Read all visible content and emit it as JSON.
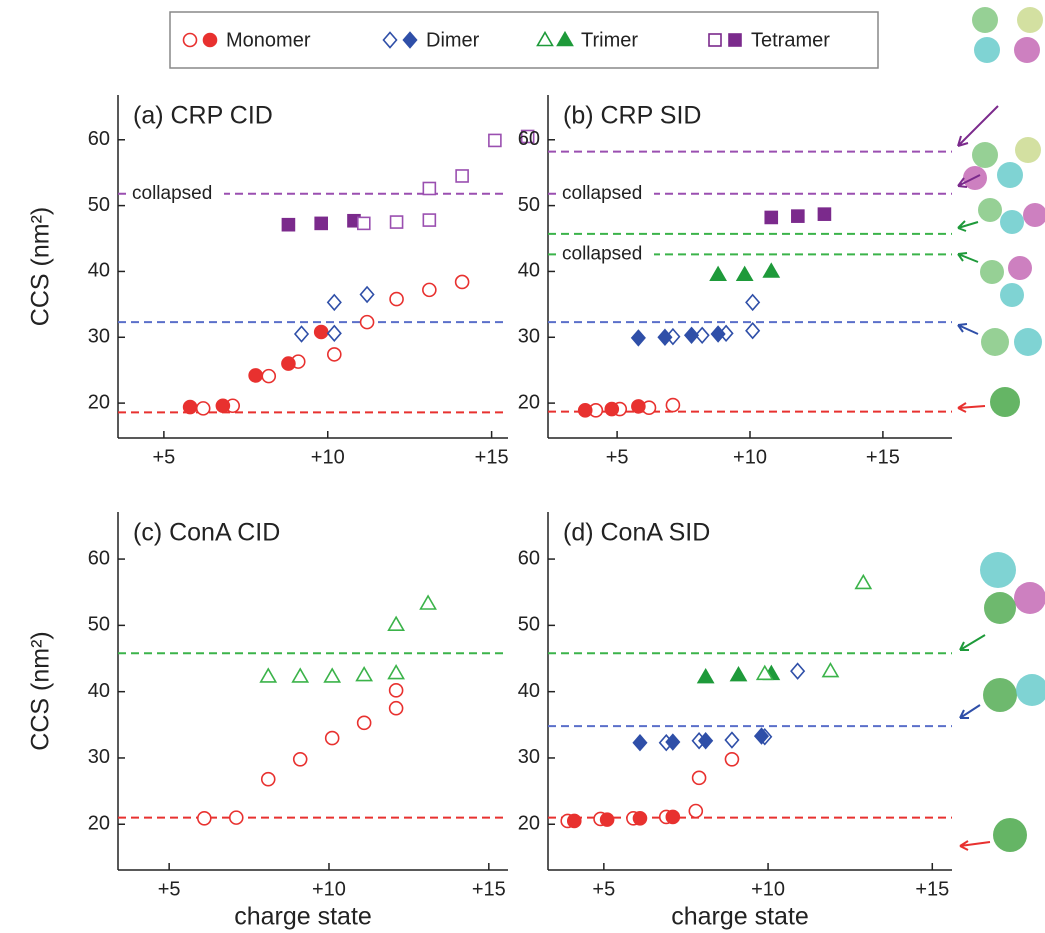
{
  "legend": [
    {
      "name": "Monomer",
      "color": "#e8312f",
      "marker": "circle"
    },
    {
      "name": "Dimer",
      "color": "#2f4fa8",
      "marker": "diamond"
    },
    {
      "name": "Trimer",
      "color": "#1e9a3a",
      "marker": "triangle"
    },
    {
      "name": "Tetramer",
      "color": "#7b2a8c",
      "marker": "square"
    }
  ],
  "chart_data": [
    {
      "type": "scatter",
      "title": "(a) CRP CID",
      "ylabel": "CCS (nm²)",
      "xlim": [
        3.6,
        15.5
      ],
      "ylim": [
        14.7,
        66.8
      ],
      "xticks": [
        {
          "value": 5,
          "label": "+5"
        },
        {
          "value": 10,
          "label": "+10"
        },
        {
          "value": 15,
          "label": "+15"
        }
      ],
      "yticks": [
        20,
        30,
        40,
        50,
        60
      ],
      "hlines": [
        {
          "value": 18.6,
          "color": "#e8312f"
        },
        {
          "value": 32.3,
          "color": "#5a6fc9"
        },
        {
          "value": 51.8,
          "color": "#9a4fb0",
          "label": "collapsed"
        }
      ],
      "series": [
        {
          "marker": "circle",
          "filled": false,
          "color": "#e8312f",
          "x": [
            6.2,
            7.1,
            8.2,
            9.1,
            10.2,
            11.2,
            12.1,
            13.1,
            14.1
          ],
          "values": [
            19.2,
            19.6,
            24.1,
            26.3,
            27.4,
            32.3,
            35.8,
            37.2,
            38.4
          ]
        },
        {
          "marker": "circle",
          "filled": true,
          "color": "#e8312f",
          "x": [
            5.8,
            6.8,
            7.8,
            8.8,
            9.8
          ],
          "values": [
            19.4,
            19.6,
            24.2,
            26.0,
            30.8
          ]
        },
        {
          "marker": "diamond",
          "filled": false,
          "color": "#2f4fa8",
          "x": [
            9.2,
            10.2,
            10.2,
            11.2
          ],
          "values": [
            30.5,
            30.6,
            35.3,
            36.5
          ]
        },
        {
          "marker": "square",
          "filled": true,
          "color": "#7b2a8c",
          "x": [
            8.8,
            9.8,
            10.8
          ],
          "values": [
            47.1,
            47.3,
            47.7
          ]
        },
        {
          "marker": "square",
          "filled": false,
          "color": "#9a4fb0",
          "x": [
            11.1,
            12.1,
            13.1,
            13.1,
            14.1,
            15.1,
            16.1
          ],
          "values": [
            47.3,
            47.5,
            47.8,
            52.6,
            54.5,
            59.9,
            60.5
          ]
        }
      ]
    },
    {
      "type": "scatter",
      "title": "(b) CRP SID",
      "xlim": [
        2.4,
        17.6
      ],
      "ylim": [
        14.7,
        66.8
      ],
      "xticks": [
        {
          "value": 5,
          "label": "+5"
        },
        {
          "value": 10,
          "label": "+10"
        },
        {
          "value": 15,
          "label": "+15"
        }
      ],
      "yticks": [
        20,
        30,
        40,
        50,
        60
      ],
      "hlines": [
        {
          "value": 18.7,
          "color": "#e8312f"
        },
        {
          "value": 32.3,
          "color": "#5a6fc9"
        },
        {
          "value": 42.6,
          "color": "#3bb34a",
          "label": "collapsed"
        },
        {
          "value": 45.7,
          "color": "#3bb34a"
        },
        {
          "value": 51.8,
          "color": "#9a4fb0",
          "label": "collapsed"
        },
        {
          "value": 58.2,
          "color": "#9a4fb0"
        }
      ],
      "series": [
        {
          "marker": "circle",
          "filled": false,
          "color": "#e8312f",
          "x": [
            4.2,
            5.1,
            6.2,
            7.1
          ],
          "values": [
            18.9,
            19.1,
            19.3,
            19.7
          ]
        },
        {
          "marker": "circle",
          "filled": true,
          "color": "#e8312f",
          "x": [
            3.8,
            4.8,
            5.8
          ],
          "values": [
            18.9,
            19.1,
            19.5
          ]
        },
        {
          "marker": "diamond",
          "filled": false,
          "color": "#2f4fa8",
          "x": [
            7.1,
            8.2,
            9.1,
            10.1,
            10.1
          ],
          "values": [
            30.1,
            30.3,
            30.6,
            31.0,
            35.3
          ]
        },
        {
          "marker": "diamond",
          "filled": true,
          "color": "#2f4fa8",
          "x": [
            5.8,
            6.8,
            7.8,
            8.8
          ],
          "values": [
            29.9,
            30.0,
            30.3,
            30.5
          ]
        },
        {
          "marker": "triangle",
          "filled": true,
          "color": "#1e9a3a",
          "x": [
            8.8,
            9.8,
            10.8
          ],
          "values": [
            39.5,
            39.5,
            40.0
          ]
        },
        {
          "marker": "square",
          "filled": true,
          "color": "#7b2a8c",
          "x": [
            10.8,
            11.8,
            12.8
          ],
          "values": [
            48.2,
            48.4,
            48.7
          ]
        }
      ]
    },
    {
      "type": "scatter",
      "title": "(c) ConA CID",
      "ylabel": "CCS (nm²)",
      "xlabel": "charge state",
      "xlim": [
        3.4,
        15.6
      ],
      "ylim": [
        13.1,
        67.1
      ],
      "xticks": [
        {
          "value": 5,
          "label": "+5"
        },
        {
          "value": 10,
          "label": "+10"
        },
        {
          "value": 15,
          "label": "+15"
        }
      ],
      "yticks": [
        20,
        30,
        40,
        50,
        60
      ],
      "hlines": [
        {
          "value": 21.0,
          "color": "#e8312f"
        },
        {
          "value": 45.8,
          "color": "#3bb34a"
        }
      ],
      "series": [
        {
          "marker": "circle",
          "filled": false,
          "color": "#e8312f",
          "x": [
            6.1,
            7.1,
            8.1,
            9.1,
            10.1,
            11.1,
            12.1,
            12.1
          ],
          "values": [
            20.9,
            21.0,
            26.8,
            29.8,
            33.0,
            35.3,
            37.5,
            40.2
          ]
        },
        {
          "marker": "triangle",
          "filled": false,
          "color": "#3bb34a",
          "x": [
            8.1,
            9.1,
            10.1,
            11.1,
            12.1,
            12.1,
            13.1
          ],
          "values": [
            42.3,
            42.3,
            42.3,
            42.5,
            42.8,
            50.1,
            53.3
          ]
        }
      ]
    },
    {
      "type": "scatter",
      "title": "(d) ConA SID",
      "xlabel": "charge state",
      "xlim": [
        3.3,
        15.6
      ],
      "ylim": [
        13.1,
        67.1
      ],
      "xticks": [
        {
          "value": 5,
          "label": "+5"
        },
        {
          "value": 10,
          "label": "+10"
        },
        {
          "value": 15,
          "label": "+15"
        }
      ],
      "yticks": [
        20,
        30,
        40,
        50,
        60
      ],
      "hlines": [
        {
          "value": 21.0,
          "color": "#e8312f"
        },
        {
          "value": 34.8,
          "color": "#5a6fc9"
        },
        {
          "value": 45.8,
          "color": "#3bb34a"
        }
      ],
      "series": [
        {
          "marker": "circle",
          "filled": false,
          "color": "#e8312f",
          "x": [
            3.9,
            4.9,
            5.9,
            6.9,
            7.8,
            7.9,
            8.9
          ],
          "values": [
            20.5,
            20.8,
            20.9,
            21.1,
            22.0,
            27.0,
            29.8
          ]
        },
        {
          "marker": "circle",
          "filled": true,
          "color": "#e8312f",
          "x": [
            4.1,
            5.1,
            6.1,
            7.1
          ],
          "values": [
            20.5,
            20.7,
            20.9,
            21.1
          ]
        },
        {
          "marker": "diamond",
          "filled": false,
          "color": "#2f4fa8",
          "x": [
            6.9,
            7.9,
            8.9,
            9.9,
            10.9
          ],
          "values": [
            32.3,
            32.6,
            32.7,
            33.2,
            43.1
          ]
        },
        {
          "marker": "diamond",
          "filled": true,
          "color": "#2f4fa8",
          "x": [
            6.1,
            7.1,
            8.1,
            9.8
          ],
          "values": [
            32.3,
            32.4,
            32.6,
            33.3
          ]
        },
        {
          "marker": "triangle",
          "filled": true,
          "color": "#1e9a3a",
          "x": [
            8.1,
            9.1,
            10.1
          ],
          "values": [
            42.2,
            42.5,
            42.7
          ]
        },
        {
          "marker": "triangle",
          "filled": false,
          "color": "#3bb34a",
          "x": [
            9.9,
            11.9,
            12.9
          ],
          "values": [
            42.7,
            43.1,
            56.4
          ]
        }
      ]
    }
  ]
}
